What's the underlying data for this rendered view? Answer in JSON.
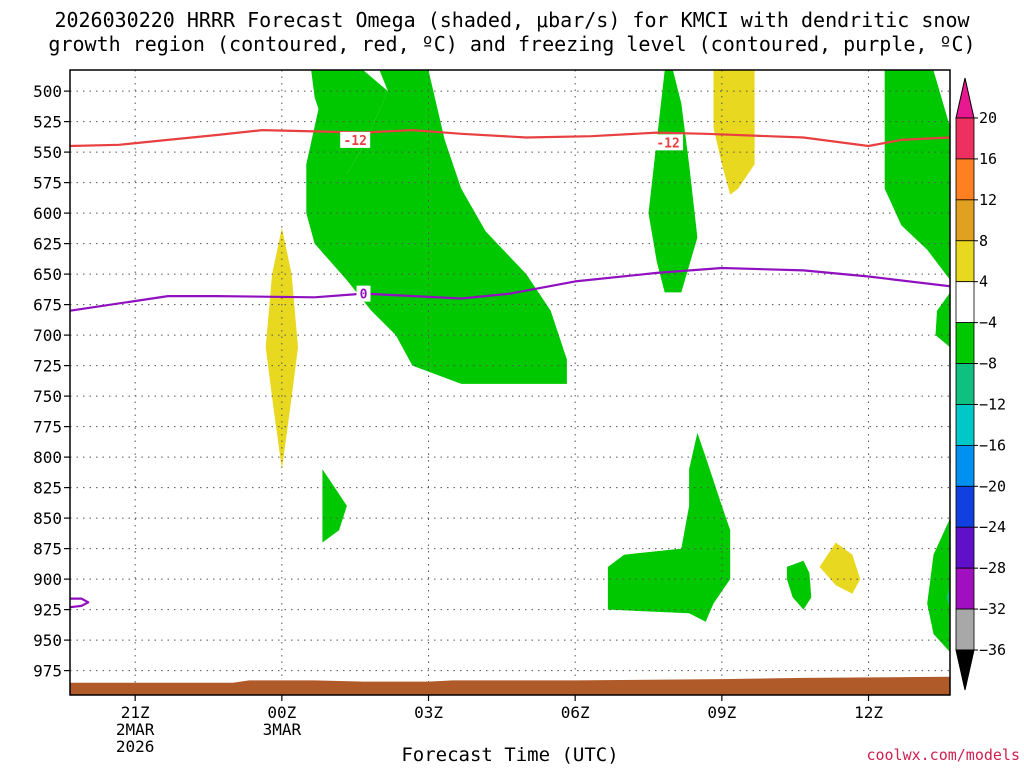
{
  "chart_data": {
    "type": "contour",
    "title_line1": "2026030220 HRRR Forecast Omega (shaded, μbar/s) for KMCI with dendritic snow",
    "title_line2": "growth region (contoured, red, ºC) and freezing level (contoured, purple, ºC)",
    "xlabel": "Forecast Time (UTC)",
    "credit": "coolwx.com/models",
    "x_range_hours": [
      -1.3333,
      16.6667
    ],
    "x_ticks": [
      {
        "h": 0,
        "lines": [
          "21Z",
          "2MAR",
          "2026"
        ]
      },
      {
        "h": 3,
        "lines": [
          "00Z",
          "3MAR"
        ]
      },
      {
        "h": 6,
        "lines": [
          "03Z"
        ]
      },
      {
        "h": 9,
        "lines": [
          "06Z"
        ]
      },
      {
        "h": 12,
        "lines": [
          "09Z"
        ]
      },
      {
        "h": 15,
        "lines": [
          "12Z"
        ]
      }
    ],
    "y_range_hpa": [
      482.7,
      995
    ],
    "y_ticks": [
      500,
      525,
      550,
      575,
      600,
      625,
      650,
      675,
      700,
      725,
      750,
      775,
      800,
      825,
      850,
      875,
      900,
      925,
      950,
      975
    ],
    "colorbar": {
      "labels": [
        "20",
        "16",
        "12",
        "8",
        "4",
        "−4",
        "−8",
        "−12",
        "−16",
        "−20",
        "−24",
        "−28",
        "−32",
        "−36"
      ],
      "colors": [
        "#ee3060",
        "#ff8020",
        "#e0a020",
        "#e8d820",
        "#ffffff",
        "#00c800",
        "#10c080",
        "#00c8c8",
        "#0090f0",
        "#1040e0",
        "#6010c8",
        "#a010c0",
        "#a8a8a8"
      ],
      "top_arrow_color": "#e81890",
      "bottom_arrow_color": "#000000"
    },
    "contours": [
      {
        "name": "dendritic-growth-minus12",
        "label": "-12",
        "color": "#e84040",
        "label_points": [
          [
            4.5,
            540
          ],
          [
            10.9,
            542
          ]
        ],
        "points": [
          [
            -1.33,
            545
          ],
          [
            -0.33,
            544
          ],
          [
            0.67,
            540
          ],
          [
            1.67,
            536
          ],
          [
            2.6,
            532
          ],
          [
            3.67,
            533
          ],
          [
            4.67,
            534
          ],
          [
            5.67,
            532
          ],
          [
            6.67,
            535
          ],
          [
            8.0,
            538
          ],
          [
            9.33,
            537
          ],
          [
            10.67,
            534
          ],
          [
            11.67,
            535
          ],
          [
            13.67,
            538
          ],
          [
            15.0,
            545
          ],
          [
            15.67,
            540
          ],
          [
            16.67,
            538
          ]
        ]
      },
      {
        "name": "freezing-level-0",
        "label": "0",
        "color": "#9010c0",
        "label_points": [
          [
            4.67,
            666
          ]
        ],
        "points": [
          [
            -1.33,
            680
          ],
          [
            0.67,
            668
          ],
          [
            1.67,
            668
          ],
          [
            3.67,
            669
          ],
          [
            4.67,
            666
          ],
          [
            6.67,
            670
          ],
          [
            7.67,
            666
          ],
          [
            9.0,
            656
          ],
          [
            10.67,
            649
          ],
          [
            12.0,
            645
          ],
          [
            13.67,
            647
          ],
          [
            15.0,
            652
          ],
          [
            16.67,
            660
          ]
        ]
      },
      {
        "name": "freezing-level-small-loop",
        "label": "",
        "color": "#9010c0",
        "label_points": [],
        "points": [
          [
            -1.33,
            916
          ],
          [
            -1.1,
            916
          ],
          [
            -0.96,
            919
          ],
          [
            -1.1,
            922
          ],
          [
            -1.33,
            923
          ]
        ]
      }
    ],
    "shaded_regions": [
      {
        "name": "green-omega-region-1",
        "level": "-4 to -8",
        "color": "#00c800",
        "points": [
          [
            4.1,
            483
          ],
          [
            4.67,
            483
          ],
          [
            5.17,
            500
          ],
          [
            4.67,
            545
          ],
          [
            4.33,
            568
          ],
          [
            4.0,
            545
          ],
          [
            3.67,
            505
          ],
          [
            3.6,
            483
          ]
        ]
      },
      {
        "name": "green-omega-region-1b",
        "level": "-4 to -8",
        "color": "#00c800",
        "points": [
          [
            3.6,
            483
          ],
          [
            4.1,
            483
          ],
          [
            4.0,
            520
          ],
          [
            4.33,
            568
          ],
          [
            4.67,
            545
          ],
          [
            5.17,
            500
          ],
          [
            5.0,
            483
          ],
          [
            6.0,
            483
          ],
          [
            6.33,
            540
          ],
          [
            6.67,
            580
          ],
          [
            7.17,
            615
          ],
          [
            8.0,
            650
          ],
          [
            8.5,
            680
          ],
          [
            8.83,
            720
          ],
          [
            8.83,
            740
          ],
          [
            6.67,
            740
          ],
          [
            5.67,
            725
          ],
          [
            5.33,
            700
          ],
          [
            4.83,
            680
          ],
          [
            4.33,
            655
          ],
          [
            3.67,
            625
          ],
          [
            3.5,
            600
          ],
          [
            3.5,
            560
          ],
          [
            3.83,
            500
          ]
        ]
      },
      {
        "name": "green-omega-region-2",
        "level": "-4 to -8",
        "color": "#00c800",
        "points": [
          [
            10.83,
            483
          ],
          [
            10.67,
            540
          ],
          [
            10.5,
            600
          ],
          [
            10.67,
            640
          ],
          [
            10.83,
            665
          ],
          [
            11.17,
            665
          ],
          [
            11.5,
            620
          ],
          [
            11.33,
            560
          ],
          [
            11.17,
            510
          ],
          [
            11.0,
            483
          ]
        ]
      },
      {
        "name": "green-omega-region-3",
        "level": "-4 to -8",
        "color": "#00c800",
        "points": [
          [
            15.33,
            483
          ],
          [
            16.33,
            483
          ],
          [
            16.67,
            530
          ],
          [
            16.67,
            655
          ],
          [
            16.2,
            630
          ],
          [
            15.67,
            610
          ],
          [
            15.33,
            580
          ],
          [
            15.33,
            520
          ]
        ]
      },
      {
        "name": "green-omega-region-4",
        "level": "-4 to -8",
        "color": "#00c800",
        "points": [
          [
            16.67,
            665
          ],
          [
            16.4,
            680
          ],
          [
            16.37,
            700
          ],
          [
            16.67,
            710
          ]
        ]
      },
      {
        "name": "green-omega-region-5",
        "level": "-4 to -8",
        "color": "#00c800",
        "points": [
          [
            3.83,
            810
          ],
          [
            4.0,
            820
          ],
          [
            4.33,
            840
          ],
          [
            4.17,
            860
          ],
          [
            3.83,
            870
          ],
          [
            3.83,
            840
          ]
        ]
      },
      {
        "name": "green-omega-region-6",
        "level": "-4 to -8",
        "color": "#00c800",
        "points": [
          [
            11.5,
            780
          ],
          [
            11.67,
            800
          ],
          [
            12.0,
            840
          ],
          [
            12.17,
            860
          ],
          [
            12.17,
            900
          ],
          [
            11.83,
            920
          ],
          [
            11.67,
            935
          ],
          [
            11.33,
            928
          ],
          [
            9.67,
            925
          ],
          [
            9.67,
            890
          ],
          [
            10.0,
            880
          ],
          [
            11.17,
            875
          ],
          [
            11.33,
            840
          ],
          [
            11.33,
            810
          ]
        ]
      },
      {
        "name": "green-omega-region-7",
        "level": "-4 to -8",
        "color": "#00c800",
        "points": [
          [
            13.33,
            890
          ],
          [
            13.67,
            885
          ],
          [
            13.79,
            895
          ],
          [
            13.83,
            915
          ],
          [
            13.67,
            925
          ],
          [
            13.45,
            915
          ],
          [
            13.33,
            900
          ]
        ]
      },
      {
        "name": "green-omega-region-8",
        "level": "-4 to -8",
        "color": "#00c800",
        "points": [
          [
            16.67,
            850
          ],
          [
            16.33,
            880
          ],
          [
            16.2,
            920
          ],
          [
            16.33,
            945
          ],
          [
            16.67,
            960
          ]
        ]
      },
      {
        "name": "teal-omega-spot",
        "level": "-8 to -12",
        "color": "#10c080",
        "points": [
          [
            16.67,
            905
          ],
          [
            16.6,
            915
          ],
          [
            16.67,
            925
          ]
        ]
      },
      {
        "name": "yellow-omega-region-1",
        "level": "4 to 8",
        "color": "#e8d820",
        "points": [
          [
            3.0,
            612
          ],
          [
            3.2,
            650
          ],
          [
            3.33,
            710
          ],
          [
            3.17,
            760
          ],
          [
            3.0,
            810
          ],
          [
            2.83,
            760
          ],
          [
            2.67,
            710
          ],
          [
            2.8,
            650
          ]
        ]
      },
      {
        "name": "yellow-omega-region-2",
        "level": "4 to 8",
        "color": "#e8d820",
        "points": [
          [
            11.83,
            483
          ],
          [
            12.67,
            483
          ],
          [
            12.67,
            560
          ],
          [
            12.33,
            580
          ],
          [
            12.17,
            585
          ],
          [
            12.0,
            560
          ],
          [
            11.83,
            530
          ]
        ]
      },
      {
        "name": "yellow-omega-region-3",
        "level": "4 to 8",
        "color": "#e8d820",
        "points": [
          [
            14.33,
            870
          ],
          [
            14.67,
            880
          ],
          [
            14.83,
            900
          ],
          [
            14.67,
            912
          ],
          [
            14.33,
            905
          ],
          [
            14.0,
            890
          ]
        ]
      }
    ],
    "terrain": {
      "color": "#b05a2a",
      "points": [
        [
          -1.33,
          985
        ],
        [
          2.0,
          985
        ],
        [
          2.33,
          983
        ],
        [
          3.67,
          983
        ],
        [
          4.67,
          984
        ],
        [
          6.0,
          984
        ],
        [
          6.5,
          983
        ],
        [
          9.0,
          983
        ],
        [
          12.0,
          982
        ],
        [
          13.67,
          981
        ],
        [
          16.67,
          980
        ]
      ]
    }
  }
}
